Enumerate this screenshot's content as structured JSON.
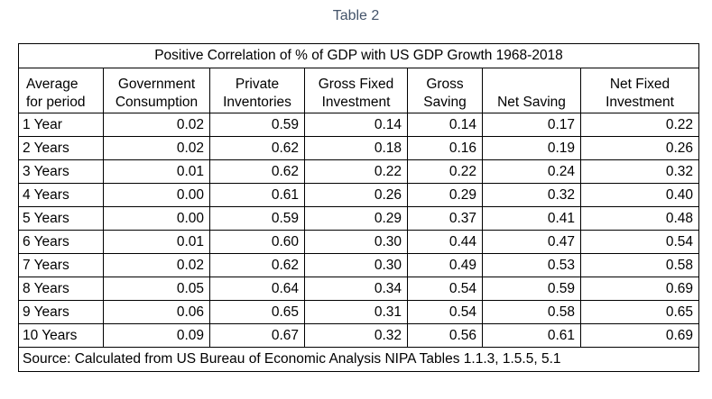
{
  "caption": "Table 2",
  "table": {
    "title": "Positive Correlation of % of GDP with US GDP Growth 1968-2018",
    "headers": [
      {
        "line1": "Average",
        "line2": "for period"
      },
      {
        "line1": "Government",
        "line2": "Consumption"
      },
      {
        "line1": "Private",
        "line2": "Inventories"
      },
      {
        "line1": "Gross Fixed",
        "line2": "Investment"
      },
      {
        "line1": "Gross",
        "line2": "Saving"
      },
      {
        "line1": "",
        "line2": "Net Saving"
      },
      {
        "line1": "Net Fixed",
        "line2": "Investment"
      }
    ],
    "rows": [
      [
        "1 Year",
        "0.02",
        "0.59",
        "0.14",
        "0.14",
        "0.17",
        "0.22"
      ],
      [
        "2 Years",
        "0.02",
        "0.62",
        "0.18",
        "0.16",
        "0.19",
        "0.26"
      ],
      [
        "3 Years",
        "0.01",
        "0.62",
        "0.22",
        "0.22",
        "0.24",
        "0.32"
      ],
      [
        "4 Years",
        "0.00",
        "0.61",
        "0.26",
        "0.29",
        "0.32",
        "0.40"
      ],
      [
        "5 Years",
        "0.00",
        "0.59",
        "0.29",
        "0.37",
        "0.41",
        "0.48"
      ],
      [
        "6 Years",
        "0.01",
        "0.60",
        "0.30",
        "0.44",
        "0.47",
        "0.54"
      ],
      [
        "7 Years",
        "0.02",
        "0.62",
        "0.30",
        "0.49",
        "0.53",
        "0.58"
      ],
      [
        "8 Years",
        "0.05",
        "0.64",
        "0.34",
        "0.54",
        "0.59",
        "0.69"
      ],
      [
        "9 Years",
        "0.06",
        "0.65",
        "0.31",
        "0.54",
        "0.58",
        "0.65"
      ],
      [
        "10 Years",
        "0.09",
        "0.67",
        "0.32",
        "0.56",
        "0.61",
        "0.69"
      ]
    ],
    "source": "Source: Calculated from US Bureau of Economic Analysis NIPA Tables 1.1.3, 1.5.5, 5.1"
  }
}
